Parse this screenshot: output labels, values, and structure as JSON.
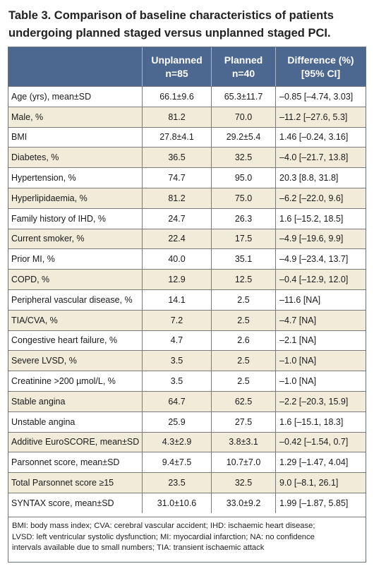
{
  "title": "Table 3. Comparison of baseline characteristics of patients undergoing planned staged versus unplanned staged PCI.",
  "header": {
    "unplanned_line1": "Unplanned",
    "unplanned_line2": "n=85",
    "planned_line1": "Planned",
    "planned_line2": "n=40",
    "diff_line1": "Difference (%)",
    "diff_line2": "[95% CI]"
  },
  "rows": [
    {
      "label": "Age (yrs), mean±SD",
      "unplanned": "66.1±9.6",
      "planned": "65.3±11.7",
      "diff": "–0.85 [–4.74, 3.03]"
    },
    {
      "label": "Male, %",
      "unplanned": "81.2",
      "planned": "70.0",
      "diff": "–11.2 [–27.6, 5.3]"
    },
    {
      "label": "BMI",
      "unplanned": "27.8±4.1",
      "planned": "29.2±5.4",
      "diff": "1.46 [–0.24, 3.16]"
    },
    {
      "label": "Diabetes, %",
      "unplanned": "36.5",
      "planned": "32.5",
      "diff": "–4.0 [–21.7, 13.8]"
    },
    {
      "label": "Hypertension, %",
      "unplanned": "74.7",
      "planned": "95.0",
      "diff": "20.3 [8.8, 31.8]"
    },
    {
      "label": "Hyperlipidaemia, %",
      "unplanned": "81.2",
      "planned": "75.0",
      "diff": "–6.2 [–22.0, 9.6]"
    },
    {
      "label": "Family history of IHD, %",
      "unplanned": "24.7",
      "planned": "26.3",
      "diff": "1.6 [–15.2, 18.5]"
    },
    {
      "label": "Current smoker, %",
      "unplanned": "22.4",
      "planned": "17.5",
      "diff": "–4.9 [–19.6, 9.9]"
    },
    {
      "label": "Prior MI, %",
      "unplanned": "40.0",
      "planned": "35.1",
      "diff": "–4.9 [–23.4, 13.7]"
    },
    {
      "label": "COPD, %",
      "unplanned": "12.9",
      "planned": "12.5",
      "diff": "–0.4 [–12.9, 12.0]"
    },
    {
      "label": "Peripheral vascular disease, %",
      "unplanned": "14.1",
      "planned": "2.5",
      "diff": "–11.6 [NA]"
    },
    {
      "label": "TIA/CVA, %",
      "unplanned": "7.2",
      "planned": "2.5",
      "diff": "–4.7 [NA]"
    },
    {
      "label": "Congestive heart failure, %",
      "unplanned": "4.7",
      "planned": "2.6",
      "diff": "–2.1 [NA]"
    },
    {
      "label": "Severe LVSD, %",
      "unplanned": "3.5",
      "planned": "2.5",
      "diff": "–1.0 [NA]"
    },
    {
      "label": "Creatinine >200 µmol/L, %",
      "unplanned": "3.5",
      "planned": "2.5",
      "diff": "–1.0 [NA]"
    },
    {
      "label": "Stable angina",
      "unplanned": "64.7",
      "planned": "62.5",
      "diff": "–2.2 [–20.3, 15.9]"
    },
    {
      "label": "Unstable angina",
      "unplanned": "25.9",
      "planned": "27.5",
      "diff": "1.6 [–15.1, 18.3]"
    },
    {
      "label": "Additive EuroSCORE, mean±SD",
      "unplanned": "4.3±2.9",
      "planned": "3.8±3.1",
      "diff": "–0.42 [–1.54, 0.7]"
    },
    {
      "label": "Parsonnet score, mean±SD",
      "unplanned": "9.4±7.5",
      "planned": "10.7±7.0",
      "diff": "1.29 [–1.47, 4.04]"
    },
    {
      "label": "Total Parsonnet score ≥15",
      "unplanned": "23.5",
      "planned": "32.5",
      "diff": "9.0 [–8.1, 26.1]"
    },
    {
      "label": "SYNTAX score, mean±SD",
      "unplanned": "31.0±10.6",
      "planned": "33.0±9.2",
      "diff": "1.99 [–1.87, 5.85]"
    }
  ],
  "footnote_lines": [
    "BMI: body mass index; CVA: cerebral vascular accident; IHD: ischaemic heart disease;",
    "LVSD: left ventricular systolic dysfunction; MI: myocardial infarction; NA: no confidence",
    "intervals available due to small numbers; TIA: transient ischaemic attack"
  ],
  "colors": {
    "header_bg": "#4d6890",
    "shaded_row_bg": "#f1ebd9",
    "border": "#7a7a7a"
  }
}
